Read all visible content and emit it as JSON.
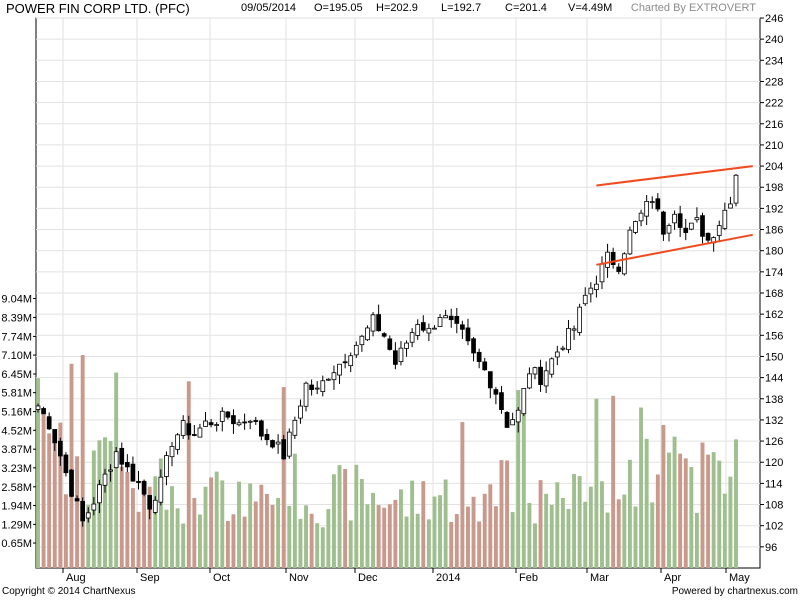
{
  "header": {
    "title": "POWER FIN CORP LTD. (PFC)",
    "date": "09/05/2014",
    "open": "O=195.05",
    "high": "H=202.9",
    "low": "L=192.7",
    "close": "C=201.4",
    "volume": "V=4.49M",
    "credit": "Charted By EXTROVERT"
  },
  "footer": {
    "copyright": "Copyright © 2014 ChartNexus",
    "powered": "Powered by chartnexus.com"
  },
  "chart_data": {
    "type": "candlestick",
    "x_tick_labels": [
      "Aug",
      "Sep",
      "Oct",
      "Nov",
      "Dec",
      "2014",
      "Feb",
      "Mar",
      "Apr",
      "May"
    ],
    "price_axis": {
      "ylim": [
        90,
        246
      ],
      "tick_labels": [
        "246",
        "240",
        "234",
        "228",
        "222",
        "216",
        "210",
        "204",
        "198",
        "192",
        "186",
        "180",
        "174",
        "168",
        "162",
        "156",
        "150",
        "144",
        "138",
        "132",
        "126",
        "120",
        "114",
        "108",
        "102",
        "96"
      ]
    },
    "volume_axis": {
      "unit": "M",
      "tick_labels": [
        "9.04M",
        "8.39M",
        "7.74M",
        "7.10M",
        "6.45M",
        "5.81M",
        "5.16M",
        "4.52M",
        "3.87M",
        "3.23M",
        "2.58M",
        "1.94M",
        "1.29M",
        "0.65M"
      ]
    },
    "price_anchors": [
      [
        0,
        136
      ],
      [
        2,
        131
      ],
      [
        4,
        122
      ],
      [
        6,
        112
      ],
      [
        8,
        103
      ],
      [
        10,
        109
      ],
      [
        12,
        116
      ],
      [
        14,
        123
      ],
      [
        16,
        118
      ],
      [
        18,
        114
      ],
      [
        20,
        108
      ],
      [
        22,
        114
      ],
      [
        24,
        126
      ],
      [
        26,
        130
      ],
      [
        28,
        128
      ],
      [
        30,
        131
      ],
      [
        32,
        132
      ],
      [
        34,
        133
      ],
      [
        36,
        131
      ],
      [
        38,
        133
      ],
      [
        40,
        128
      ],
      [
        42,
        126
      ],
      [
        44,
        122
      ],
      [
        46,
        132
      ],
      [
        48,
        142
      ],
      [
        50,
        140
      ],
      [
        52,
        145
      ],
      [
        54,
        148
      ],
      [
        56,
        152
      ],
      [
        58,
        155
      ],
      [
        60,
        160
      ],
      [
        62,
        156
      ],
      [
        64,
        148
      ],
      [
        66,
        154
      ],
      [
        68,
        160
      ],
      [
        70,
        157
      ],
      [
        72,
        162
      ],
      [
        74,
        159
      ],
      [
        76,
        156
      ],
      [
        78,
        150
      ],
      [
        80,
        146
      ],
      [
        82,
        140
      ],
      [
        84,
        131
      ],
      [
        86,
        134
      ],
      [
        88,
        146
      ],
      [
        90,
        144
      ],
      [
        92,
        149
      ],
      [
        94,
        154
      ],
      [
        96,
        158
      ],
      [
        98,
        167
      ],
      [
        100,
        172
      ],
      [
        102,
        178
      ],
      [
        104,
        176
      ],
      [
        106,
        185
      ],
      [
        108,
        190
      ],
      [
        110,
        195
      ],
      [
        112,
        186
      ],
      [
        114,
        192
      ],
      [
        116,
        185
      ],
      [
        118,
        188
      ],
      [
        120,
        183
      ],
      [
        122,
        188
      ],
      [
        124,
        195
      ],
      [
        125,
        201.4
      ]
    ],
    "volume_anchors_m": [
      [
        0,
        5.0
      ],
      [
        6,
        3.5
      ],
      [
        10,
        2.8
      ],
      [
        14,
        4.0
      ],
      [
        18,
        2.5
      ],
      [
        22,
        2.6
      ],
      [
        26,
        2.3
      ],
      [
        30,
        2.5
      ],
      [
        34,
        2.1
      ],
      [
        38,
        1.9
      ],
      [
        42,
        2.2
      ],
      [
        46,
        2.6
      ],
      [
        50,
        2.1
      ],
      [
        54,
        2.3
      ],
      [
        58,
        2.4
      ],
      [
        62,
        2.2
      ],
      [
        66,
        2.0
      ],
      [
        70,
        2.4
      ],
      [
        74,
        2.2
      ],
      [
        78,
        2.1
      ],
      [
        82,
        2.5
      ],
      [
        86,
        3.2
      ],
      [
        90,
        2.0
      ],
      [
        94,
        1.9
      ],
      [
        98,
        2.4
      ],
      [
        102,
        2.6
      ],
      [
        106,
        3.0
      ],
      [
        110,
        3.0
      ],
      [
        114,
        3.2
      ],
      [
        118,
        2.8
      ],
      [
        122,
        3.0
      ],
      [
        125,
        4.49
      ]
    ],
    "volume_spikes_m": [
      [
        6,
        6.8
      ],
      [
        8,
        7.1
      ],
      [
        14,
        6.5
      ],
      [
        27,
        6.2
      ],
      [
        44,
        6.0
      ],
      [
        76,
        4.8
      ],
      [
        86,
        5.9
      ],
      [
        87,
        5.4
      ],
      [
        100,
        5.6
      ],
      [
        103,
        5.7
      ],
      [
        108,
        5.3
      ],
      [
        112,
        4.7
      ],
      [
        114,
        4.3
      ],
      [
        119,
        4.1
      ]
    ],
    "up_color": "#9fbf8f",
    "down_color": "#c9998c",
    "trendlines": [
      {
        "from": [
          100,
          198.5
        ],
        "to": [
          128,
          204
        ],
        "color": "#f04a1e"
      },
      {
        "from": [
          100,
          176
        ],
        "to": [
          128,
          184.5
        ],
        "color": "#f04a1e"
      }
    ],
    "grid": true,
    "candle_count": 126
  }
}
